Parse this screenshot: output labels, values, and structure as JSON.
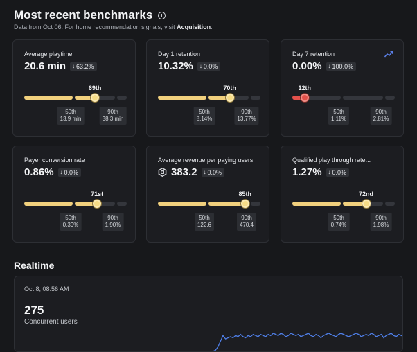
{
  "header": {
    "title": "Most recent benchmarks",
    "subtitle_prefix": "Data from Oct 06. For home recommendation signals, visit ",
    "subtitle_link": "Acquisition",
    "subtitle_suffix": "."
  },
  "cards": [
    {
      "label": "Average playtime",
      "value": "20.6 min",
      "delta": "63.2%",
      "position": "69th",
      "percentile": 69,
      "variant": "yellow",
      "p50_label": "50th",
      "p50_value": "13.9 min",
      "p90_label": "90th",
      "p90_value": "38.3 min"
    },
    {
      "label": "Day 1 retention",
      "value": "10.32%",
      "delta": "0.0%",
      "position": "70th",
      "percentile": 70,
      "variant": "yellow",
      "p50_label": "50th",
      "p50_value": "8.14%",
      "p90_label": "90th",
      "p90_value": "13.77%"
    },
    {
      "label": "Day 7 retention",
      "value": "0.00%",
      "delta": "100.0%",
      "position": "12th",
      "percentile": 12,
      "variant": "red",
      "trend_icon": "trend-up-icon",
      "p50_label": "50th",
      "p50_value": "1.11%",
      "p90_label": "90th",
      "p90_value": "2.81%"
    },
    {
      "label": "Payer conversion rate",
      "value": "0.86%",
      "delta": "0.0%",
      "position": "71st",
      "percentile": 71,
      "variant": "yellow",
      "p50_label": "50th",
      "p50_value": "0.39%",
      "p90_label": "90th",
      "p90_value": "1.90%"
    },
    {
      "label": "Average revenue per paying users",
      "value": "383.2",
      "value_icon": "robux-icon",
      "delta": "0.0%",
      "position": "85th",
      "percentile": 85,
      "variant": "yellow",
      "p50_label": "50th",
      "p50_value": "122.6",
      "p90_label": "90th",
      "p90_value": "470.4"
    },
    {
      "label": "Qualified play through rate...",
      "value": "1.27%",
      "delta": "0.0%",
      "position": "72nd",
      "percentile": 72,
      "variant": "yellow",
      "p50_label": "50th",
      "p50_value": "0.74%",
      "p90_label": "90th",
      "p90_value": "1.98%"
    }
  ],
  "realtime": {
    "title": "Realtime",
    "timestamp": "Oct 8, 08:56 AM",
    "value": "275",
    "label": "Concurrent users",
    "line_color": "#4f7fe8",
    "series": [
      0,
      0,
      0,
      0,
      0,
      0,
      0,
      0,
      0,
      0,
      0,
      0,
      0,
      0,
      0,
      0,
      0,
      0,
      0,
      0,
      0,
      0,
      0,
      0,
      0,
      0,
      0,
      0,
      0,
      0,
      0,
      0,
      0,
      0,
      0,
      0,
      0,
      0,
      0,
      0,
      0,
      0,
      0,
      0,
      0,
      0,
      0,
      0,
      0,
      0,
      0,
      0,
      0,
      0,
      0,
      0,
      0,
      0,
      0,
      0,
      0,
      0,
      0,
      0,
      0,
      0,
      0,
      0,
      0,
      0,
      0,
      0,
      0,
      0,
      0,
      0,
      0,
      0,
      0,
      0,
      1,
      4,
      9,
      14,
      11,
      12,
      13,
      12,
      14,
      13,
      15,
      13,
      12,
      14,
      13,
      15,
      14,
      13,
      15,
      14,
      13,
      15,
      14,
      16,
      15,
      14,
      16,
      15,
      13,
      14,
      16,
      15,
      14,
      15,
      13,
      14,
      15,
      16,
      14,
      13,
      15,
      14,
      12,
      14,
      15,
      16,
      15,
      14,
      13,
      15,
      16,
      15,
      14,
      13,
      14,
      15,
      16,
      15,
      13,
      14,
      15,
      14,
      16,
      15,
      13,
      14,
      15,
      12,
      14,
      15,
      16,
      14,
      13,
      15,
      14,
      13
    ]
  }
}
